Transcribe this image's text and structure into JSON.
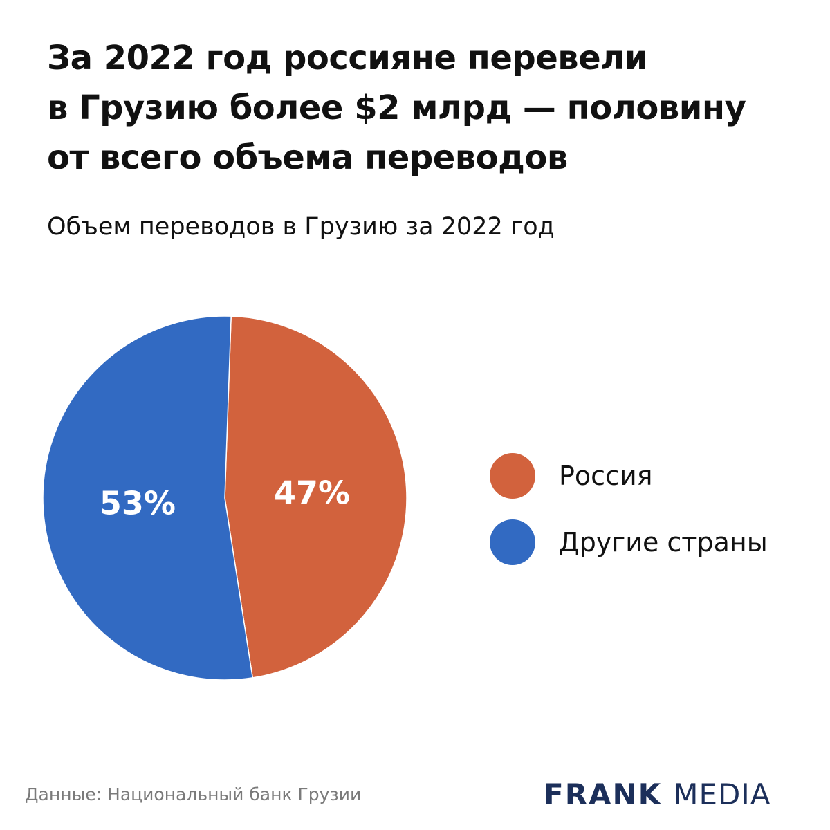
{
  "header": {
    "title_lines": [
      "За 2022 год россияне перевели",
      "в Грузию более $2 млрд — половину",
      "от всего объема переводов"
    ],
    "subtitle": "Объем переводов в Грузию за 2022 год"
  },
  "chart_data": {
    "type": "pie",
    "title": "За 2022 год россияне перевели в Грузию более $2 млрд — половину от всего объема переводов",
    "subtitle": "Объем переводов в Грузию за 2022 год",
    "unit": "%",
    "slices": [
      {
        "name": "Россия",
        "value": 47,
        "label": "47%",
        "color": "#d2623d"
      },
      {
        "name": "Другие страны",
        "value": 53,
        "label": "53%",
        "color": "#326ac2"
      }
    ],
    "legend_position": "right",
    "label_color": "#ffffff"
  },
  "footer": {
    "source": "Данные: Национальный банк Грузии",
    "brand_part1": "FRANK",
    "brand_part2": "MEDIA",
    "brand_color": "#1c2f5a"
  }
}
